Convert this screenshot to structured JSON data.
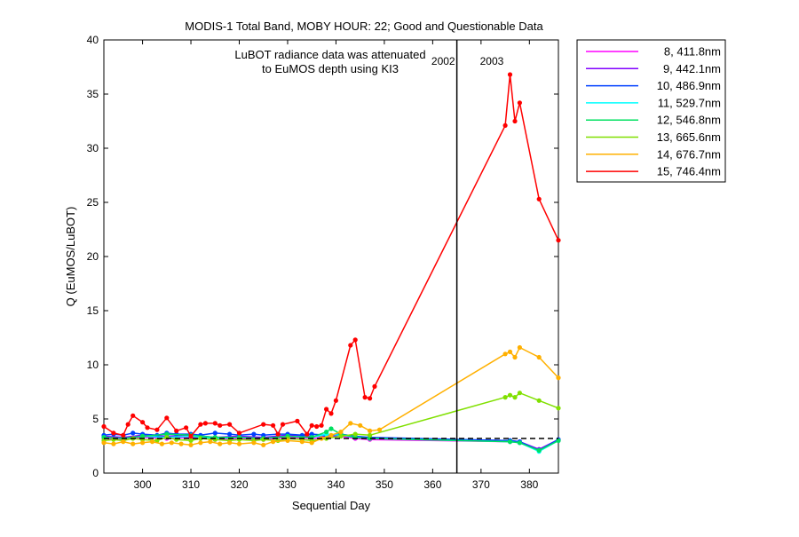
{
  "chart_data": {
    "type": "line",
    "title": "MODIS-1 Total Band,  MOBY HOUR: 22;  Good and Questionable Data",
    "xlabel": "Sequential Day",
    "ylabel": "Q (EuMOS/LuBOT)",
    "xlim": [
      292,
      386
    ],
    "ylim": [
      0,
      40
    ],
    "x_ticks": [
      300,
      310,
      320,
      330,
      340,
      350,
      360,
      370,
      380
    ],
    "y_ticks": [
      0,
      5,
      10,
      15,
      20,
      25,
      30,
      35,
      40
    ],
    "grid": false,
    "legend_position": "outside-right",
    "annotation_lines": [
      "LuBOT radiance data was attenuated",
      "to EuMOS depth using KI3"
    ],
    "year_divider": {
      "x": 365,
      "left_label": "2002",
      "right_label": "2003"
    },
    "reference_line": {
      "y": 3.2,
      "style": "dashed",
      "color": "#000000"
    },
    "series": [
      {
        "name": "8, 411.8nm",
        "color": "#ff00ff",
        "x": [
          292,
          296,
          300,
          305,
          310,
          315,
          320,
          325,
          330,
          335,
          338,
          341,
          344,
          347,
          376,
          378,
          382,
          386
        ],
        "y": [
          3.2,
          3.1,
          3.3,
          3.2,
          3.3,
          3.1,
          3.2,
          3.1,
          3.3,
          3.2,
          3.3,
          3.4,
          3.2,
          3.1,
          2.9,
          2.8,
          2.1,
          3.0
        ]
      },
      {
        "name": "9, 442.1nm",
        "color": "#8000ff",
        "x": [
          292,
          296,
          300,
          305,
          310,
          315,
          320,
          325,
          330,
          335,
          338,
          341,
          344,
          347,
          376,
          378,
          382,
          386
        ],
        "y": [
          3.4,
          3.3,
          3.5,
          3.4,
          3.5,
          3.3,
          3.4,
          3.3,
          3.5,
          3.4,
          3.4,
          3.5,
          3.3,
          3.2,
          3.0,
          2.9,
          2.2,
          3.1
        ]
      },
      {
        "name": "10, 486.9nm",
        "color": "#0040ff",
        "x": [
          292,
          294,
          296,
          298,
          300,
          303,
          305,
          307,
          310,
          312,
          315,
          318,
          320,
          323,
          325,
          328,
          330,
          333,
          335,
          338,
          341,
          344,
          347,
          376,
          378,
          382,
          386
        ],
        "y": [
          3.5,
          3.6,
          3.5,
          3.7,
          3.6,
          3.5,
          3.7,
          3.6,
          3.6,
          3.5,
          3.7,
          3.6,
          3.5,
          3.6,
          3.5,
          3.6,
          3.6,
          3.5,
          3.6,
          3.5,
          3.6,
          3.4,
          3.3,
          3.0,
          2.9,
          2.1,
          3.1
        ]
      },
      {
        "name": "11, 529.7nm",
        "color": "#00ffff",
        "x": [
          292,
          296,
          300,
          305,
          310,
          315,
          320,
          325,
          330,
          335,
          338,
          341,
          344,
          347,
          376,
          378,
          382,
          386
        ],
        "y": [
          3.3,
          3.2,
          3.4,
          3.3,
          3.4,
          3.2,
          3.3,
          3.2,
          3.4,
          3.3,
          3.6,
          3.5,
          3.3,
          3.2,
          2.9,
          2.8,
          2.0,
          3.0
        ]
      },
      {
        "name": "12, 546.8nm",
        "color": "#00e060",
        "x": [
          292,
          296,
          300,
          305,
          310,
          315,
          320,
          325,
          330,
          335,
          338,
          339,
          341,
          344,
          347,
          376,
          378,
          382,
          386
        ],
        "y": [
          3.3,
          3.2,
          3.4,
          3.6,
          3.5,
          3.3,
          3.3,
          3.2,
          3.4,
          3.3,
          3.8,
          4.1,
          3.6,
          3.3,
          3.2,
          2.9,
          2.8,
          2.1,
          3.0
        ]
      },
      {
        "name": "13, 665.6nm",
        "color": "#80e000",
        "x": [
          292,
          294,
          296,
          298,
          300,
          303,
          305,
          307,
          310,
          312,
          315,
          318,
          320,
          323,
          325,
          328,
          330,
          333,
          335,
          338,
          341,
          344,
          347,
          375,
          376,
          377,
          378,
          382,
          386
        ],
        "y": [
          3.0,
          3.1,
          3.0,
          3.2,
          3.1,
          3.0,
          3.3,
          3.1,
          3.0,
          3.2,
          3.1,
          3.0,
          3.1,
          3.0,
          3.1,
          3.0,
          3.2,
          3.1,
          3.0,
          3.2,
          3.4,
          3.6,
          3.5,
          7.0,
          7.2,
          7.0,
          7.4,
          6.7,
          6.0
        ]
      },
      {
        "name": "14, 676.7nm",
        "color": "#ffb000",
        "x": [
          292,
          294,
          296,
          298,
          300,
          302,
          304,
          306,
          308,
          310,
          312,
          314,
          316,
          318,
          320,
          323,
          325,
          327,
          330,
          333,
          335,
          337,
          339,
          341,
          343,
          345,
          347,
          349,
          375,
          376,
          377,
          378,
          382,
          386
        ],
        "y": [
          2.8,
          2.7,
          2.9,
          2.7,
          2.8,
          2.9,
          2.7,
          2.8,
          2.7,
          2.6,
          2.8,
          2.9,
          2.7,
          2.8,
          2.7,
          2.8,
          2.6,
          2.9,
          3.0,
          2.9,
          2.8,
          3.2,
          3.5,
          3.8,
          4.6,
          4.4,
          3.9,
          4.0,
          11.0,
          11.2,
          10.7,
          11.6,
          10.7,
          8.8
        ]
      },
      {
        "name": "15, 746.4nm",
        "color": "#ff0000",
        "x": [
          292,
          294,
          296,
          297,
          298,
          300,
          301,
          303,
          305,
          307,
          309,
          310,
          312,
          313,
          315,
          316,
          318,
          320,
          325,
          327,
          328,
          329,
          332,
          334,
          335,
          336,
          337,
          338,
          339,
          340,
          343,
          344,
          346,
          347,
          348,
          375,
          376,
          377,
          378,
          382,
          386
        ],
        "y": [
          4.3,
          3.7,
          3.5,
          4.5,
          5.3,
          4.7,
          4.2,
          4.0,
          5.1,
          3.9,
          4.2,
          3.4,
          4.5,
          4.6,
          4.6,
          4.4,
          4.5,
          3.7,
          4.5,
          4.4,
          3.6,
          4.5,
          4.8,
          3.6,
          4.4,
          4.3,
          4.4,
          5.9,
          5.5,
          6.7,
          11.8,
          12.3,
          7.0,
          6.9,
          8.0,
          32.1,
          36.8,
          32.5,
          34.2,
          25.3,
          21.5
        ]
      }
    ]
  }
}
